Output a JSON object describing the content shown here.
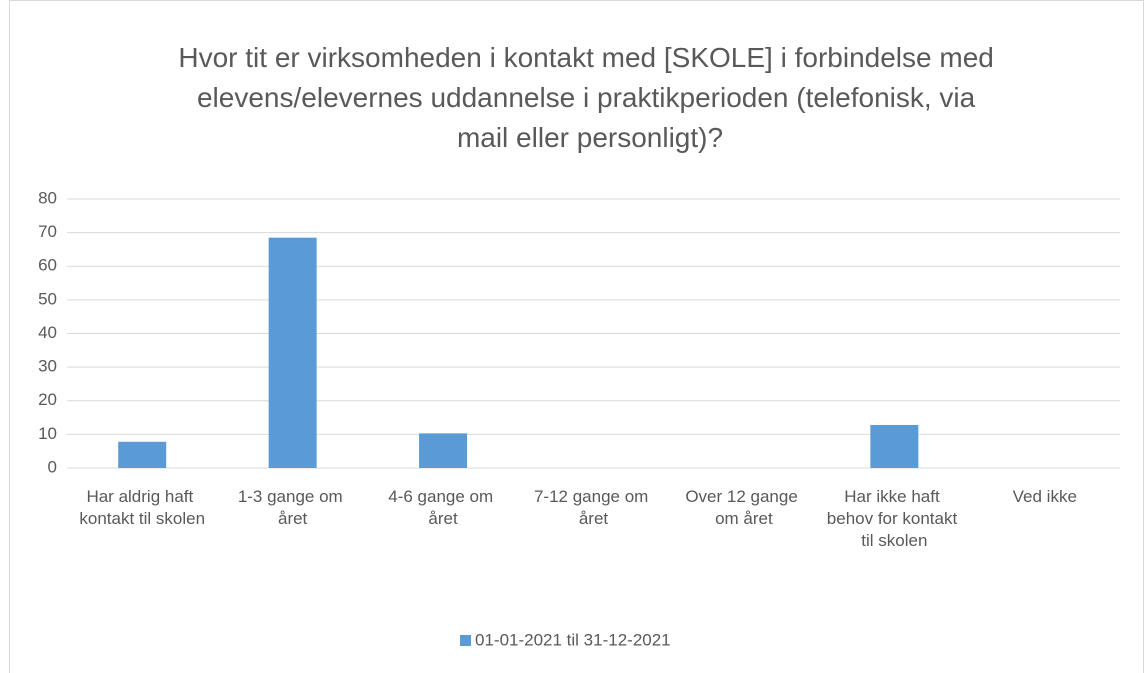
{
  "chart_data": {
    "type": "bar",
    "title": "Hvor tit er virksomheden i kontakt med [SKOLE] i forbindelse med elevens/elevernes uddannelse i praktikperioden (telefonisk, via mail eller personligt)?",
    "categories": [
      "Har aldrig haft kontakt til skolen",
      "1-3 gange om året",
      "4-6 gange om året",
      "7-12 gange om året",
      "Over 12 gange om året",
      "Har ikke haft behov for kontakt til skolen",
      "Ved ikke"
    ],
    "series": [
      {
        "name": "01-01-2021 til 31-12-2021",
        "color": "#5b9bd5",
        "values": [
          7.8,
          68.5,
          10.3,
          0,
          0,
          12.8,
          0
        ]
      }
    ],
    "ylim": [
      0,
      80
    ],
    "yticks": [
      0,
      10,
      20,
      30,
      40,
      50,
      60,
      70,
      80
    ],
    "grid": true,
    "legend": "bottom"
  }
}
